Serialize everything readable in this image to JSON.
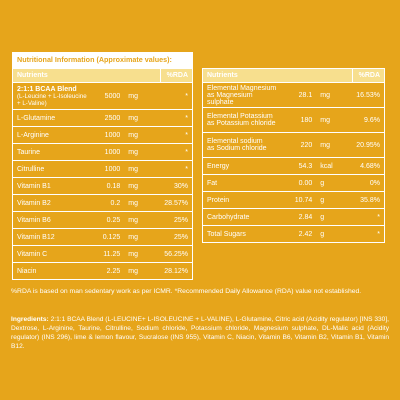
{
  "left_panel": {
    "title": "Nutritional Information (Approximate values):",
    "headers": [
      "Nutrients",
      "%RDA"
    ],
    "rows": [
      {
        "name": "2:1:1 BCAA Blend",
        "sub": "(L-Leucine + L-Isoleucine + L-Valine)",
        "value": "5000",
        "unit": "mg",
        "rda": "*"
      },
      {
        "name": "L-Glutamine",
        "value": "2500",
        "unit": "mg",
        "rda": "*"
      },
      {
        "name": "L-Arginine",
        "value": "1000",
        "unit": "mg",
        "rda": "*"
      },
      {
        "name": "Taurine",
        "value": "1000",
        "unit": "mg",
        "rda": "*"
      },
      {
        "name": "Citrulline",
        "value": "1000",
        "unit": "mg",
        "rda": "*"
      },
      {
        "name": "Vitamin B1",
        "value": "0.18",
        "unit": "mg",
        "rda": "30%"
      },
      {
        "name": "Vitamin B2",
        "value": "0.2",
        "unit": "mg",
        "rda": "28.57%"
      },
      {
        "name": "Vitamin B6",
        "value": "0.25",
        "unit": "mg",
        "rda": "25%"
      },
      {
        "name": "Vitamin B12",
        "value": "0.125",
        "unit": "mg",
        "rda": "25%"
      },
      {
        "name": "Vitamin C",
        "value": "11.25",
        "unit": "mg",
        "rda": "56.25%"
      },
      {
        "name": "Niacin",
        "value": "2.25",
        "unit": "mg",
        "rda": "28.12%"
      }
    ]
  },
  "right_panel": {
    "headers": [
      "Nutrients",
      "%RDA"
    ],
    "rows": [
      {
        "name": "Elemental Magnesium",
        "sub": "as Magnesium sulphate",
        "value": "28.1",
        "unit": "mg",
        "rda": "16.53%"
      },
      {
        "name": "Elemental Potassium",
        "sub": "as Potassium chloride",
        "value": "180",
        "unit": "mg",
        "rda": "9.6%"
      },
      {
        "name": "Elemental sodium",
        "sub": "as Sodium chloride",
        "value": "220",
        "unit": "mg",
        "rda": "20.95%"
      },
      {
        "name": "Energy",
        "value": "54.3",
        "unit": "kcal",
        "rda": "4.68%"
      },
      {
        "name": "Fat",
        "value": "0.00",
        "unit": "g",
        "rda": "0%"
      },
      {
        "name": "Protein",
        "value": "10.74",
        "unit": "g",
        "rda": "35.8%"
      },
      {
        "name": "Carbohydrate",
        "value": "2.84",
        "unit": "g",
        "rda": "*"
      },
      {
        "name": "Total Sugars",
        "value": "2.42",
        "unit": "g",
        "rda": "*"
      }
    ]
  },
  "footnote": "%RDA is based on man sedentary work as per ICMR. *Recommended Daily Allowance (RDA) value not established.",
  "ingredients_label": "Ingredients:",
  "ingredients_text": " 2:1:1 BCAA Blend (L-LEUCINE+ L-ISOLEUCINE + L-VALINE), L-Glutamine, Citric acid (Acidity regulator) [INS 330], Dextrose, L-Arginine, Taurine, Citrulline, Sodium chloride, Potassium chloride, Magnesium sulphate, DL-Malic acid (Acidity regulator) (INS 296), lime & lemon flavour, Sucralose (INS 955), Vitamin C, Niacin, Vitamin B6, Vitamin B2, Vitamin B1, Vitamin B12.",
  "colors": {
    "background": "#e6a51b",
    "header_row": "#f7df8e",
    "title_bar": "#ffffff"
  }
}
